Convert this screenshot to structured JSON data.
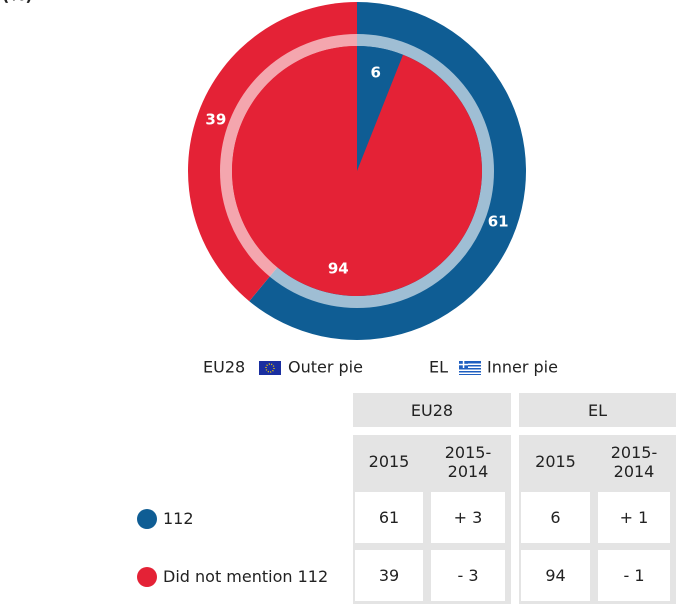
{
  "chart_data": {
    "type": "pie",
    "title": "(%)",
    "categories": [
      "112",
      "Did not mention 112"
    ],
    "colors": [
      "#0f5d94",
      "#e42236"
    ],
    "series": [
      {
        "name": "EU28",
        "ring": "Outer pie",
        "values": [
          61,
          39
        ]
      },
      {
        "name": "EL",
        "ring": "Inner pie",
        "values": [
          6,
          94
        ]
      }
    ]
  },
  "table": {
    "subheaders": [
      "2015",
      "2015-\n2014"
    ],
    "rows": [
      [
        "61",
        "+ 3",
        "6",
        "+ 1"
      ],
      [
        "39",
        "- 3",
        "94",
        "- 1"
      ]
    ]
  }
}
